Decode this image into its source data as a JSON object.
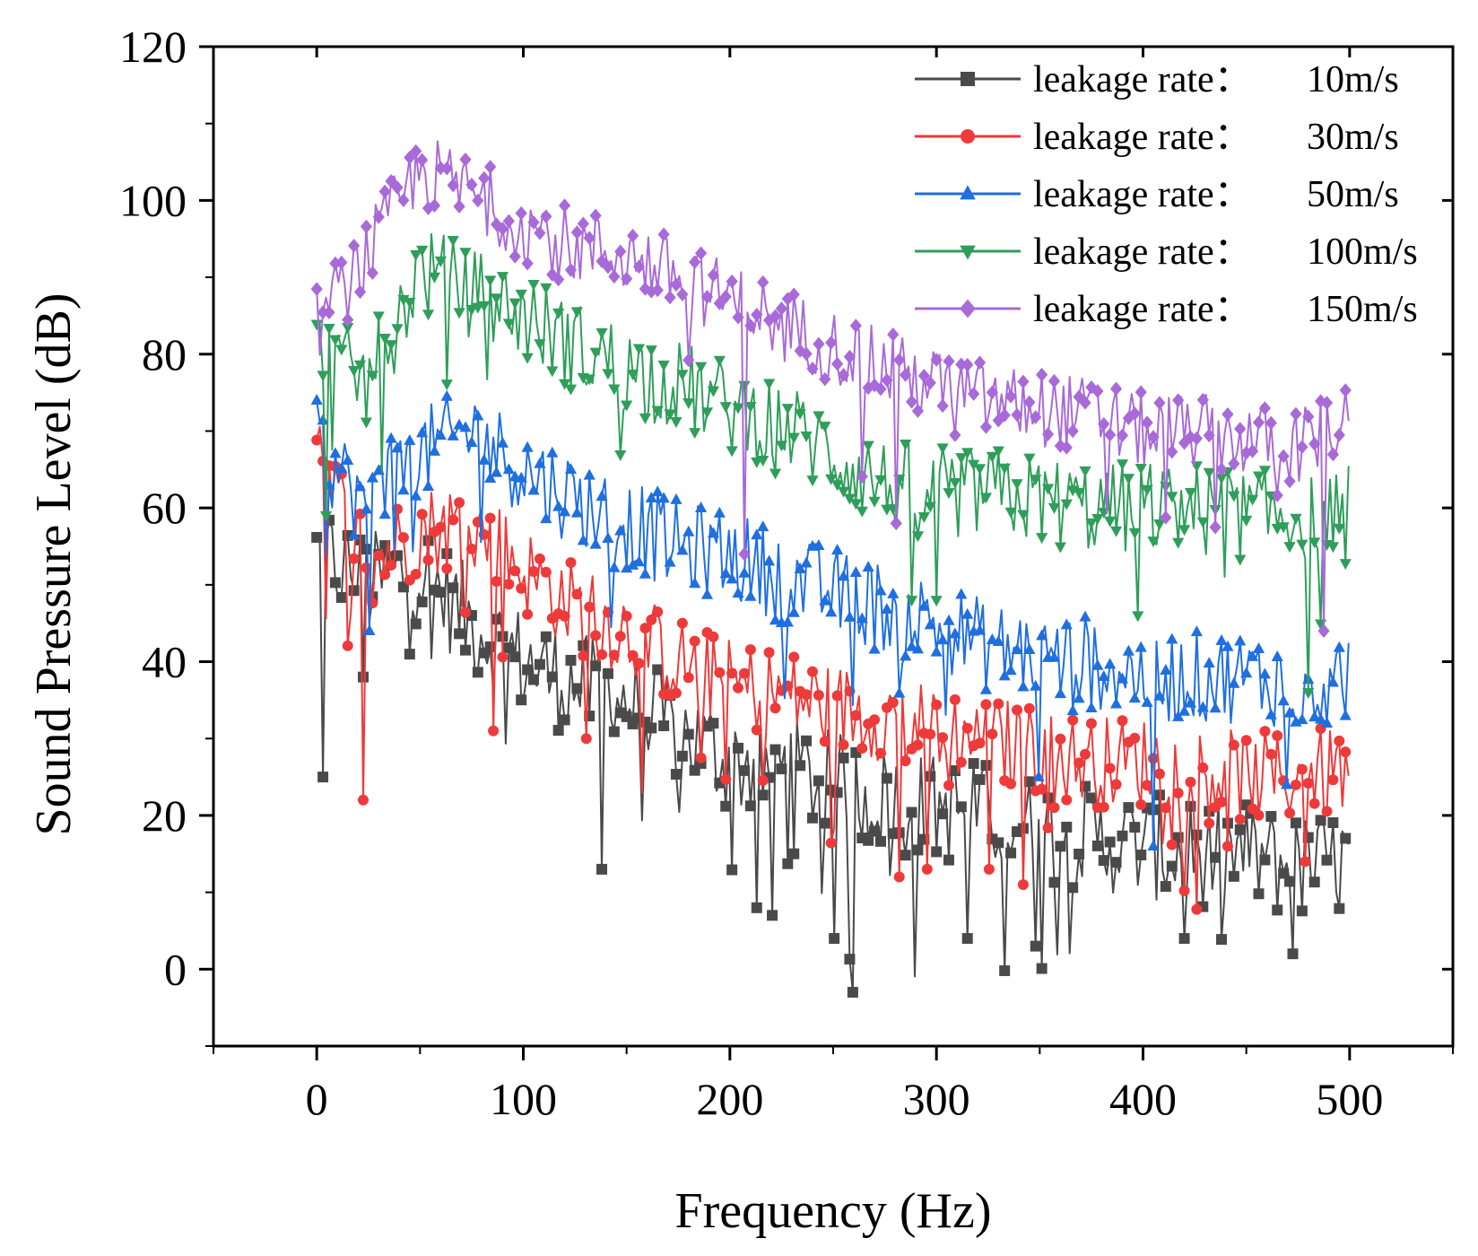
{
  "chart_data": {
    "type": "line",
    "title": "",
    "xlabel": "Frequency (Hz)",
    "ylabel": "Sound Pressure Level (dB)",
    "xlim": [
      -50,
      550
    ],
    "ylim": [
      -10,
      120
    ],
    "xticks": [
      0,
      100,
      200,
      300,
      400,
      500
    ],
    "xtick_labels": [
      "0",
      "100",
      "200",
      "300",
      "400",
      "500"
    ],
    "yticks": [
      0,
      20,
      40,
      60,
      80,
      100,
      120
    ],
    "ytick_labels": [
      "0",
      "20",
      "40",
      "60",
      "80",
      "100",
      "120"
    ],
    "legend_position": "top-right",
    "grid": false,
    "series": [
      {
        "name": "leakage rate： 10m/s",
        "legend_name": "leakage rate：",
        "legend_value": "10m/s",
        "color": "#4a4a4a",
        "marker": "square",
        "x": [
          0,
          25,
          50,
          75,
          100,
          125,
          150,
          175,
          200,
          225,
          250,
          275,
          300,
          325,
          350,
          375,
          400,
          425,
          450,
          475,
          500
        ],
        "y": [
          54,
          50,
          52,
          45,
          40,
          37,
          35,
          31,
          27,
          26,
          24,
          22,
          21,
          20,
          18,
          17,
          16,
          15,
          15,
          13,
          14
        ],
        "spread": 7,
        "dips": [
          [
            3,
            25
          ],
          [
            22,
            38
          ],
          [
            138,
            13
          ],
          [
            260,
            -3
          ],
          [
            250,
            4
          ],
          [
            220,
            7
          ],
          [
            315,
            4
          ],
          [
            348,
            3
          ],
          [
            420,
            4
          ],
          [
            473,
            2
          ]
        ]
      },
      {
        "name": "leakage rate： 30m/s",
        "legend_name": "leakage rate：",
        "legend_value": "30m/s",
        "color": "#ee3a3a",
        "marker": "circle",
        "x": [
          0,
          25,
          50,
          75,
          100,
          125,
          150,
          175,
          200,
          225,
          250,
          275,
          300,
          325,
          350,
          375,
          400,
          425,
          450,
          475,
          500
        ],
        "y": [
          66,
          53,
          57,
          58,
          52,
          47,
          44,
          40,
          37,
          36,
          34,
          33,
          31,
          30,
          28,
          27,
          27,
          26,
          25,
          25,
          26
        ],
        "spread": 6,
        "dips": [
          [
            22,
            22
          ],
          [
            85,
            31
          ],
          [
            130,
            30
          ],
          [
            282,
            12
          ],
          [
            342,
            11
          ],
          [
            296,
            13
          ],
          [
            326,
            13
          ],
          [
            478,
            14
          ]
        ]
      },
      {
        "name": "leakage rate： 50m/s",
        "legend_name": "leakage rate：",
        "legend_value": "50m/s",
        "color": "#1f6fe0",
        "marker": "triangle-up",
        "x": [
          0,
          25,
          50,
          75,
          100,
          125,
          150,
          175,
          200,
          225,
          250,
          275,
          300,
          325,
          350,
          375,
          400,
          425,
          450,
          475,
          500
        ],
        "y": [
          68,
          60,
          67,
          70,
          65,
          61,
          58,
          55,
          54,
          51,
          49,
          47,
          45,
          42,
          41,
          40,
          38,
          38,
          38,
          37,
          38
        ],
        "spread": 6,
        "dips": [
          [
            25,
            44
          ],
          [
            405,
            16
          ],
          [
            350,
            25
          ],
          [
            470,
            24
          ]
        ]
      },
      {
        "name": "leakage rate： 100m/s",
        "legend_name": "leakage rate：",
        "legend_value": "100m/s",
        "color": "#2f9e5a",
        "marker": "triangle-down",
        "x": [
          0,
          25,
          50,
          75,
          100,
          125,
          150,
          175,
          200,
          225,
          250,
          275,
          300,
          325,
          350,
          375,
          400,
          425,
          450,
          475,
          500
        ],
        "y": [
          80,
          76,
          91,
          88,
          85,
          81,
          78,
          76,
          73,
          71,
          67,
          63,
          62,
          62,
          61,
          60,
          60,
          60,
          59,
          59,
          60
        ],
        "spread": 6,
        "dips": [
          [
            5,
            59
          ],
          [
            300,
            48
          ],
          [
            288,
            48
          ],
          [
            398,
            46
          ],
          [
            480,
            36
          ]
        ]
      },
      {
        "name": "leakage rate： 150m/s",
        "legend_name": "leakage rate：",
        "legend_value": "150m/s",
        "color": "#a86ad8",
        "marker": "diamond",
        "x": [
          0,
          25,
          50,
          75,
          100,
          125,
          150,
          175,
          200,
          225,
          250,
          275,
          300,
          325,
          350,
          375,
          400,
          425,
          450,
          475,
          500
        ],
        "y": [
          84,
          93,
          104,
          101,
          97,
          94,
          93,
          90,
          87,
          84,
          81,
          78,
          76,
          74,
          73,
          72,
          70,
          70,
          69,
          68,
          71
        ],
        "spread": 5,
        "dips": [
          [
            207,
            54
          ],
          [
            487,
            44
          ],
          [
            280,
            58
          ]
        ]
      }
    ]
  }
}
